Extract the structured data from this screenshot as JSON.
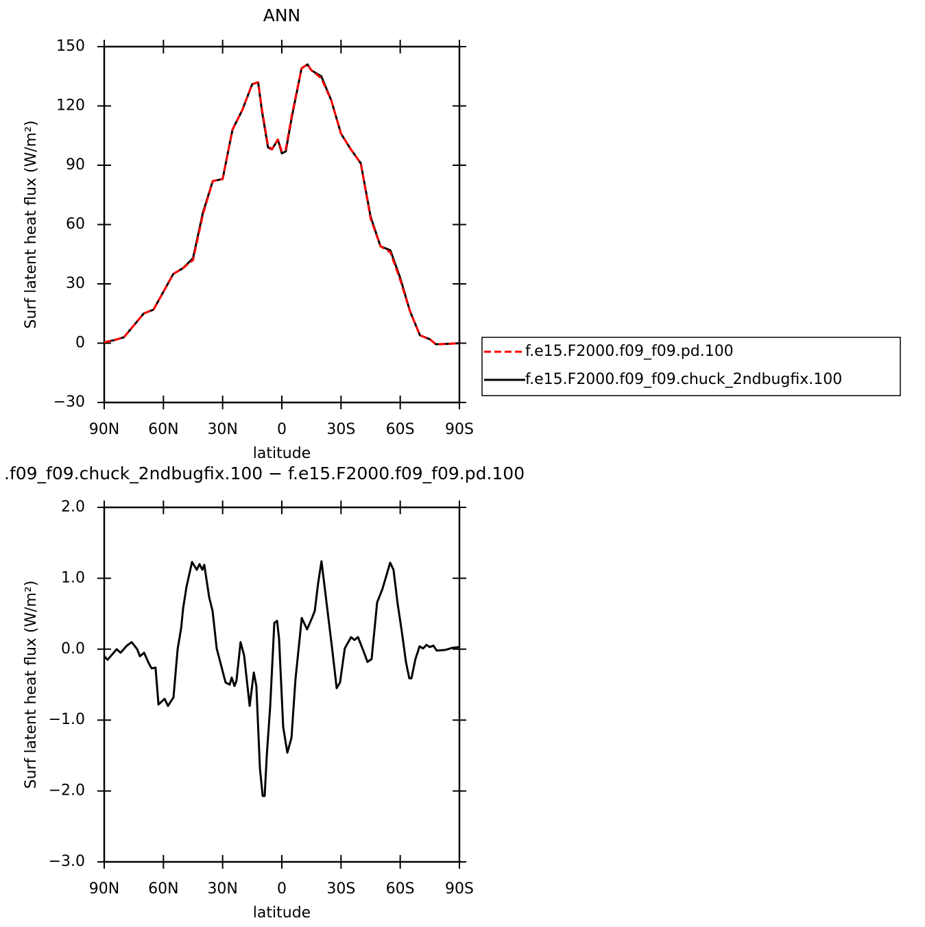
{
  "chart_data": [
    {
      "type": "line",
      "title": "ANN",
      "xlabel": "latitude",
      "ylabel": "Surf latent heat flux (W/m²)",
      "x": [
        90,
        85,
        80,
        75,
        70,
        65,
        60,
        55,
        50,
        45,
        40,
        35,
        30,
        25,
        20,
        15,
        12,
        10,
        7,
        5,
        2,
        0,
        -2,
        -5,
        -10,
        -13,
        -15,
        -20,
        -25,
        -30,
        -35,
        -40,
        -45,
        -50,
        -55,
        -60,
        -65,
        -70,
        -75,
        -78,
        -80,
        -85,
        -90
      ],
      "series": [
        {
          "name": "f.e15.F2000.f09_f09.pd.100",
          "color": "#ff0000",
          "line_style": "dashed",
          "values": [
            0.5,
            1.5,
            3,
            9,
            15,
            17,
            26,
            35,
            38,
            42,
            65,
            82,
            83,
            108,
            118,
            131,
            132,
            118,
            100,
            98,
            103,
            97,
            98,
            115,
            139,
            141,
            138,
            134,
            123,
            106,
            98,
            91,
            63,
            49,
            46,
            32,
            16,
            4,
            2,
            -0.5,
            -0.5,
            -0.3,
            0
          ]
        },
        {
          "name": "f.e15.F2000.f09_f09.chuck_2ndbugfix.100",
          "color": "#000000",
          "line_style": "solid",
          "values": [
            0.5,
            1.5,
            3,
            9,
            15,
            17,
            26,
            35,
            38,
            43,
            66,
            82,
            83,
            108,
            118,
            131,
            132,
            117,
            99,
            98,
            103,
            96,
            97,
            114,
            139,
            141,
            138,
            135,
            123,
            106,
            98,
            91,
            64,
            49,
            47,
            33,
            16,
            4,
            2,
            -0.5,
            -0.5,
            -0.3,
            0
          ]
        }
      ],
      "xlim": [
        90,
        -90
      ],
      "xticks": [
        {
          "value": 90,
          "label": "90N"
        },
        {
          "value": 60,
          "label": "60N"
        },
        {
          "value": 30,
          "label": "30N"
        },
        0,
        {
          "value": -30,
          "label": "30S"
        },
        {
          "value": -60,
          "label": "60S"
        },
        {
          "value": -90,
          "label": "90S"
        }
      ],
      "ylim": [
        -30,
        150
      ],
      "yticks": [
        {
          "value": -30,
          "label": "−30"
        },
        0,
        30,
        60,
        90,
        120,
        150
      ],
      "legend": "right"
    },
    {
      "type": "line",
      "title": ".f09_f09.chuck_2ndbugfix.100 − f.e15.F2000.f09_f09.pd.100",
      "xlabel": "latitude",
      "ylabel": "Surf latent heat flux (W/m²)",
      "x": [
        90,
        88.3,
        83.7,
        81.7,
        78.5,
        76.1,
        73.3,
        71.9,
        69.8,
        67.4,
        66,
        64,
        62.5,
        59.4,
        57.7,
        54.9,
        52.8,
        51,
        50,
        48.3,
        45.5,
        43.1,
        41.7,
        40.3,
        39.3,
        36.8,
        35.1,
        33,
        31.6,
        28.5,
        26.4,
        25.4,
        24,
        23,
        20.9,
        19.1,
        16.3,
        14.2,
        12.9,
        11.1,
        9.7,
        8.7,
        7.6,
        5.9,
        3.8,
        2.4,
        1.4,
        -0.7,
        -2.8,
        -4.9,
        -6.9,
        -10.1,
        -12.8,
        -15.3,
        -16.7,
        -18.4,
        -20.1,
        -21.9,
        -25.7,
        -27.8,
        -29.5,
        -31.9,
        -35.1,
        -36.8,
        -38.6,
        -41.3,
        -43.4,
        -45.5,
        -48.3,
        -51,
        -52.8,
        -54.9,
        -56.6,
        -58.7,
        -60.8,
        -62.9,
        -64.6,
        -65.7,
        -67.7,
        -69.8,
        -71.6,
        -73.3,
        -75,
        -76.8,
        -78.5,
        -83,
        -86.5,
        -90
      ],
      "values": [
        -0.1,
        -0.15,
        0,
        -0.05,
        0.05,
        0.1,
        0,
        -0.1,
        -0.05,
        -0.2,
        -0.27,
        -0.26,
        -0.78,
        -0.7,
        -0.8,
        -0.68,
        0,
        0.3,
        0.58,
        0.88,
        1.23,
        1.12,
        1.2,
        1.12,
        1.19,
        0.73,
        0.54,
        0.01,
        -0.14,
        -0.47,
        -0.5,
        -0.4,
        -0.52,
        -0.45,
        0.1,
        -0.09,
        -0.8,
        -0.33,
        -0.52,
        -1.68,
        -2.07,
        -2.07,
        -1.49,
        -0.81,
        0.37,
        0.4,
        0.15,
        -1.1,
        -1.46,
        -1.25,
        -0.43,
        0.44,
        0.28,
        0.44,
        0.54,
        0.93,
        1.24,
        0.83,
        -0.04,
        -0.55,
        -0.47,
        0.01,
        0.17,
        0.13,
        0.17,
        -0.02,
        -0.18,
        -0.14,
        0.66,
        0.85,
        1.02,
        1.22,
        1.12,
        0.64,
        0.25,
        -0.18,
        -0.41,
        -0.41,
        -0.14,
        0.04,
        0.01,
        0.06,
        0.03,
        0.05,
        -0.02,
        -0.01,
        0.02,
        0.03
      ],
      "color": "#000000",
      "xlim": [
        90,
        -90
      ],
      "xticks": [
        {
          "value": 90,
          "label": "90N"
        },
        {
          "value": 60,
          "label": "60N"
        },
        {
          "value": 30,
          "label": "30N"
        },
        0,
        {
          "value": -30,
          "label": "30S"
        },
        {
          "value": -60,
          "label": "60S"
        },
        {
          "value": -90,
          "label": "90S"
        }
      ],
      "ylim": [
        -3,
        2
      ],
      "yticks": [
        {
          "value": -3,
          "label": "−3.0"
        },
        {
          "value": -2,
          "label": "−2.0"
        },
        {
          "value": -1,
          "label": "−1.0"
        },
        {
          "value": 0,
          "label": "0.0"
        },
        {
          "value": 1,
          "label": "1.0"
        },
        {
          "value": 2,
          "label": "2.0"
        }
      ]
    }
  ]
}
